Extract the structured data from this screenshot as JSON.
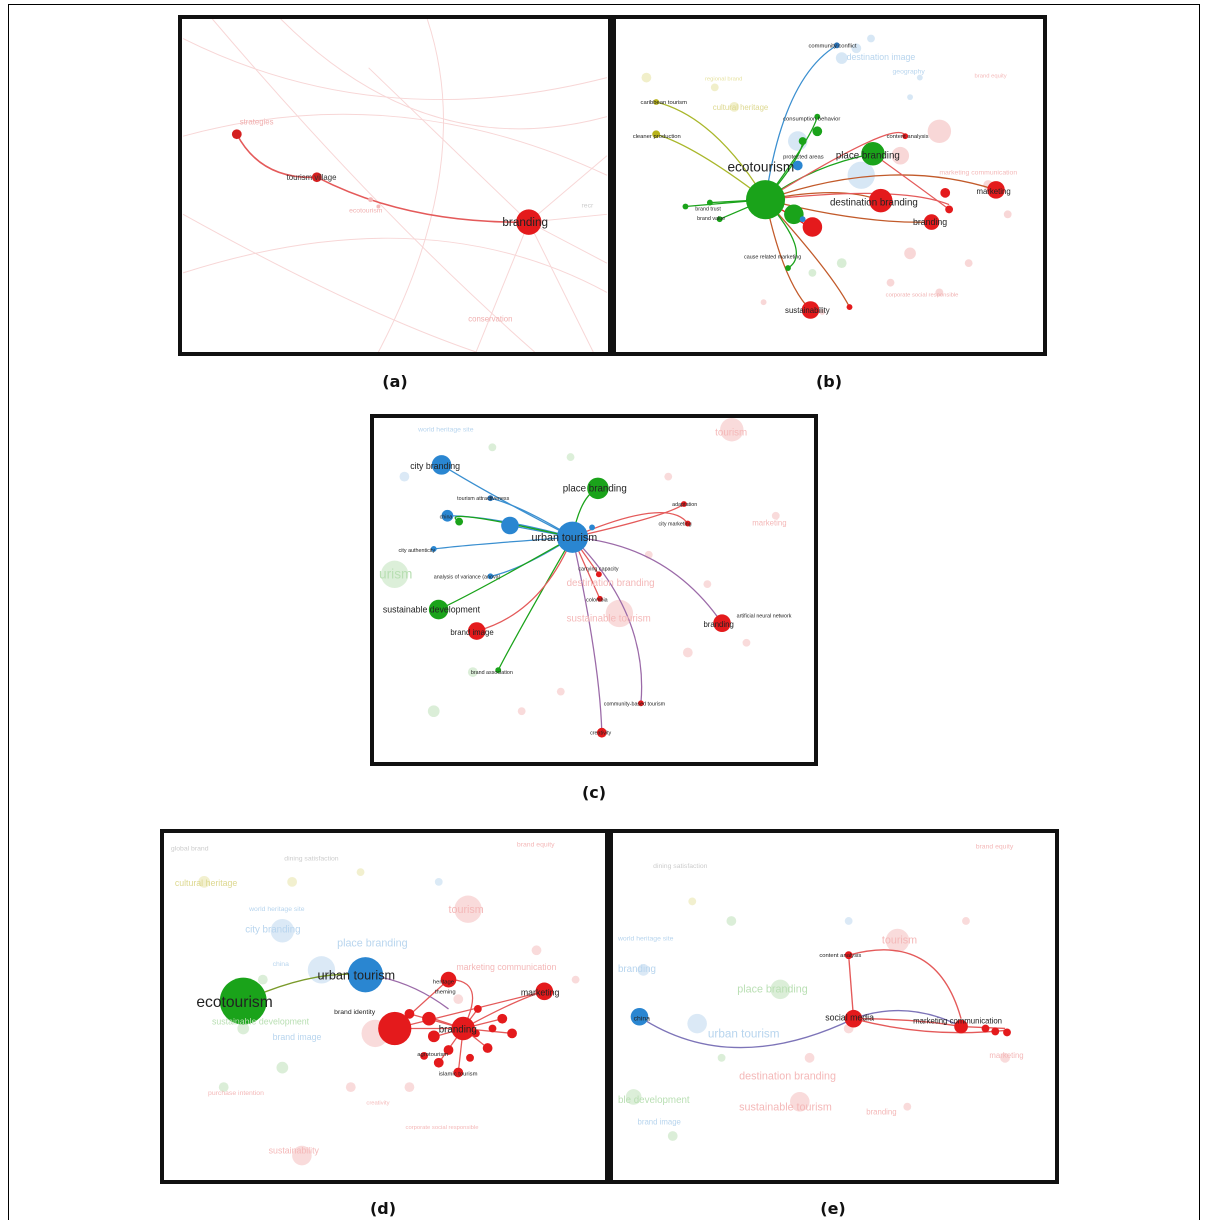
{
  "colors": {
    "red": "#e41a1c",
    "green": "#1aa31a",
    "blue": "#2a86d1",
    "yellow": "#b8b31a",
    "faint_red": "#f4b8b8",
    "faint_green": "#b9dfb3",
    "faint_blue": "#b8d5ee"
  },
  "captions": {
    "a": "(a)",
    "b": "(b)",
    "c": "(c)",
    "d": "(d)",
    "e": "(e)"
  },
  "panel_a": {
    "labels": {
      "branding": "branding",
      "tourism_village": "tourism village",
      "strategies": "strategies",
      "ecotourism": "ecotourism",
      "conservation": "conservation",
      "recr": "recr"
    }
  },
  "panel_b": {
    "labels": {
      "ecotourism": "ecotourism",
      "place_branding": "place branding",
      "destination_branding": "destination branding",
      "branding": "branding",
      "marketing": "marketing",
      "sustainability": "sustainability",
      "community_conflict": "community conflict",
      "destination_image": "destination image",
      "geography": "geography",
      "caribbean_tourism": "caribbean tourism",
      "cultural_heritage": "cultural heritage",
      "cleaner_production": "cleaner production",
      "consumer_behavior": "consumption behavior",
      "protected_areas": "protected areas",
      "content_analysis": "content analysis",
      "brand_equity": "brand equity",
      "marketing_communication": "marketing communication",
      "regional_brand": "regional brand",
      "cause_related_marketing": "cause related marketing",
      "corporate_social_responsible": "corporate social responsible",
      "brand_trust": "brand trust",
      "brand_value": "brand value"
    }
  },
  "panel_c": {
    "labels": {
      "urban_tourism": "urban tourism",
      "city_branding": "city branding",
      "place_branding": "place branding",
      "sustainable_development": "sustainable development",
      "brand_image": "brand image",
      "branding": "branding",
      "brand_association": "brand association",
      "community_based_tourism": "community-based tourism",
      "creativity": "creativity",
      "tourism": "tourism",
      "destination_branding": "destination branding",
      "sustainable_tourism": "sustainable tourism",
      "world_heritage_site": "world heritage site",
      "tourism_attractiveness": "tourism attractiveness",
      "city_authenticity": "city authenticity",
      "analysis_of_variance": "analysis of variance (anova)",
      "carrying_capacity": "carrying capacity",
      "adaptation": "adaptation",
      "city_marketing": "city marketing",
      "marketing": "marketing",
      "artificial_neural_network": "artificial neural network",
      "colombia": "colombia",
      "china": "china",
      "tourism_partial": "urism"
    }
  },
  "panel_d": {
    "labels": {
      "ecotourism": "ecotourism",
      "urban_tourism": "urban tourism",
      "branding": "branding",
      "marketing": "marketing",
      "brand_identity": "brand identity",
      "heritage": "heritage",
      "theming": "theming",
      "agrotourism": "agrotourism",
      "islamic_tourism": "islamic tourism",
      "cultural_heritage": "cultural heritage",
      "city_branding": "city branding",
      "place_branding": "place branding",
      "tourism": "tourism",
      "marketing_communication": "marketing communication",
      "world_heritage_site": "world heritage site",
      "global_brand": "global brand",
      "dining_satisfaction": "dining satisfaction",
      "brand_image": "brand image",
      "sustainability": "sustainability",
      "purchase_intention": "purchase intention",
      "corporate_social_responsible": "corporate social responsible",
      "china": "china",
      "sustainable_development": "sustainable development",
      "creativity": "creativity",
      "brand_equity": "brand equity"
    }
  },
  "panel_e": {
    "labels": {
      "china": "china",
      "social_media": "social media",
      "marketing_communication": "marketing communication",
      "tourism": "tourism",
      "content_analysis": "content analysis",
      "urban_tourism": "urban tourism",
      "place_branding": "place branding",
      "destination_branding": "destination branding",
      "sustainable_tourism": "sustainable tourism",
      "brand_image": "brand image",
      "dining_satisfaction": "dining satisfaction",
      "brand_equity": "brand equity",
      "city_branding": "branding",
      "world_heritage_site": "world heritage site",
      "marketing": "marketing",
      "branding": "branding",
      "sustainable_development": "ble development"
    }
  }
}
